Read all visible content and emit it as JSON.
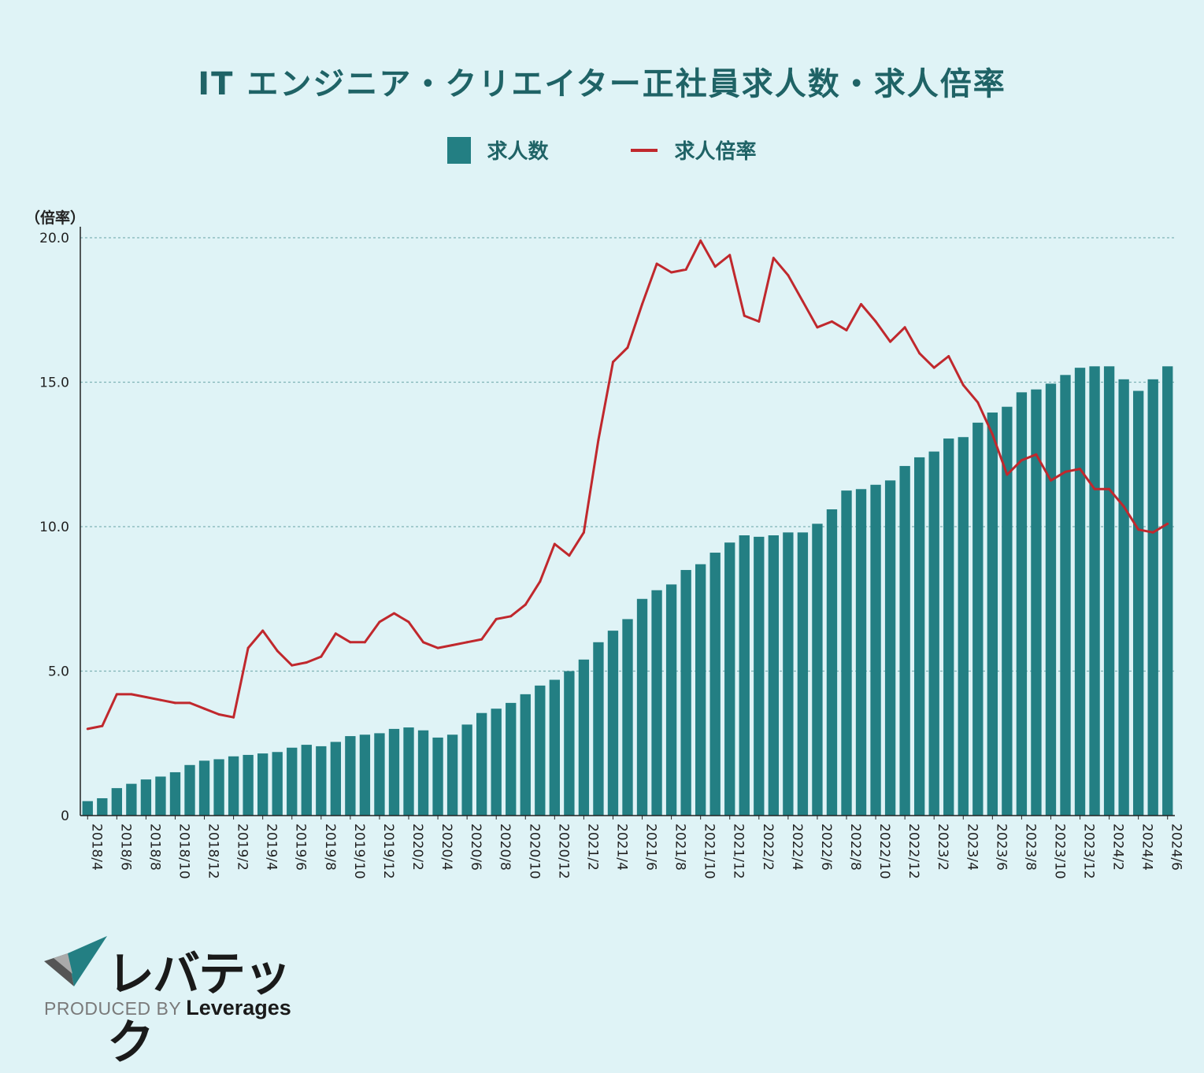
{
  "chart_data": {
    "type": "bar",
    "title": "IT エンジニア・クリエイター正社員求人数・求人倍率",
    "y_unit_label": "（倍率）",
    "legend": [
      "求人数",
      "求人倍率"
    ],
    "legend_position": "top-center",
    "grid": true,
    "ylim": [
      0,
      20
    ],
    "yticks": [
      "0",
      "5.0",
      "10.0",
      "15.0",
      "20.0"
    ],
    "x": [
      "2018/4",
      "2018/5",
      "2018/6",
      "2018/7",
      "2018/8",
      "2018/9",
      "2018/10",
      "2018/11",
      "2018/12",
      "2019/1",
      "2019/2",
      "2019/3",
      "2019/4",
      "2019/5",
      "2019/6",
      "2019/7",
      "2019/8",
      "2019/9",
      "2019/10",
      "2019/11",
      "2019/12",
      "2020/1",
      "2020/2",
      "2020/3",
      "2020/4",
      "2020/5",
      "2020/6",
      "2020/7",
      "2020/8",
      "2020/9",
      "2020/10",
      "2020/11",
      "2020/12",
      "2021/1",
      "2021/2",
      "2021/3",
      "2021/4",
      "2021/5",
      "2021/6",
      "2021/7",
      "2021/8",
      "2021/9",
      "2021/10",
      "2021/11",
      "2021/12",
      "2022/1",
      "2022/2",
      "2022/3",
      "2022/4",
      "2022/5",
      "2022/6",
      "2022/7",
      "2022/8",
      "2022/9",
      "2022/10",
      "2022/11",
      "2022/12",
      "2023/1",
      "2023/2",
      "2023/3",
      "2023/4",
      "2023/5",
      "2023/6",
      "2023/7",
      "2023/8",
      "2023/9",
      "2023/10",
      "2023/11",
      "2023/12",
      "2024/1",
      "2024/2",
      "2024/3",
      "2024/4",
      "2024/5",
      "2024/6"
    ],
    "xticks": [
      "2018/4",
      "2018/6",
      "2018/8",
      "2018/10",
      "2018/12",
      "2019/2",
      "2019/4",
      "2019/6",
      "2019/8",
      "2019/10",
      "2019/12",
      "2020/2",
      "2020/4",
      "2020/6",
      "2020/8",
      "2020/10",
      "2020/12",
      "2021/2",
      "2021/4",
      "2021/6",
      "2021/8",
      "2021/10",
      "2021/12",
      "2022/2",
      "2022/4",
      "2022/6",
      "2022/8",
      "2022/10",
      "2022/12",
      "2023/2",
      "2023/4",
      "2023/6",
      "2023/8",
      "2023/10",
      "2023/12",
      "2024/2",
      "2024/4",
      "2024/6"
    ],
    "series": [
      {
        "name": "求人数",
        "type": "bar",
        "color": "#237f83",
        "values": [
          0.5,
          0.6,
          0.95,
          1.1,
          1.25,
          1.35,
          1.5,
          1.75,
          1.9,
          1.95,
          2.05,
          2.1,
          2.15,
          2.2,
          2.35,
          2.45,
          2.4,
          2.55,
          2.75,
          2.8,
          2.85,
          3.0,
          3.05,
          2.95,
          2.7,
          2.8,
          3.15,
          3.55,
          3.7,
          3.9,
          4.2,
          4.5,
          4.7,
          5.0,
          5.4,
          6.0,
          6.4,
          6.8,
          7.5,
          7.8,
          8.0,
          8.5,
          8.7,
          9.1,
          9.45,
          9.7,
          9.65,
          9.7,
          9.8,
          9.8,
          10.1,
          10.6,
          11.25,
          11.3,
          11.45,
          11.6,
          12.1,
          12.4,
          12.6,
          13.05,
          13.1,
          13.6,
          13.95,
          14.15,
          14.65,
          14.75,
          14.95,
          15.25,
          15.5,
          15.55,
          15.55,
          15.1,
          14.7,
          15.1,
          15.55
        ]
      },
      {
        "name": "求人倍率",
        "type": "line",
        "color": "#c0282d",
        "values": [
          3.0,
          3.1,
          4.2,
          4.2,
          4.1,
          4.0,
          3.9,
          3.9,
          3.7,
          3.5,
          3.4,
          5.8,
          6.4,
          5.7,
          5.2,
          5.3,
          5.5,
          6.3,
          6.0,
          6.0,
          6.7,
          7.0,
          6.7,
          6.0,
          5.8,
          5.9,
          6.0,
          6.1,
          6.8,
          6.9,
          7.3,
          8.1,
          9.4,
          9.0,
          9.8,
          13.0,
          15.7,
          16.2,
          17.7,
          19.1,
          18.8,
          18.9,
          19.9,
          19.0,
          19.4,
          17.3,
          17.1,
          19.3,
          18.7,
          17.8,
          16.9,
          17.1,
          16.8,
          17.7,
          17.1,
          16.4,
          16.9,
          16.0,
          15.5,
          15.9,
          14.9,
          14.3,
          13.2,
          11.8,
          12.3,
          12.5,
          11.6,
          11.9,
          12.0,
          11.3,
          11.3,
          10.7,
          9.9,
          9.8,
          10.1
        ]
      }
    ]
  },
  "logo": {
    "brand": "レバテック",
    "produced_by": "PRODUCED BY",
    "company": "Leverages"
  }
}
